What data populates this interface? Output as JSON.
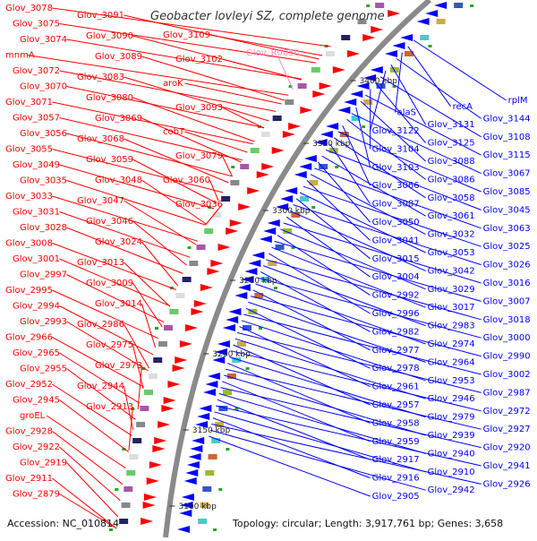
{
  "title": "Geobacter lovleyi SZ, complete genome",
  "footer": {
    "accession": "Accession: NC_010814",
    "summary": "Topology: circular; Length: 3,917,761 bp; Genes: 3,658"
  },
  "colors": {
    "forward_strand": "#ff0000",
    "reverse_strand": "#0000ff",
    "rna_feature": "#ff88cc",
    "backbone": "#8a8a8a"
  },
  "kbp_ticks": [
    "3400 kbp",
    "3350 kbp",
    "3300 kbp",
    "3250 kbp",
    "3200 kbp",
    "3150 kbp",
    "3100 kbp"
  ],
  "left_labels": [
    "Glov_3078",
    "Glov_3075",
    "Glov_3074",
    "mnmA",
    "Glov_3072",
    "Glov_3070",
    "Glov_3071",
    "Glov_3057",
    "Glov_3056",
    "Glov_3055",
    "Glov_3049",
    "Glov_3035",
    "Glov_3033",
    "Glov_3031",
    "Glov_3028",
    "Glov_3008",
    "Glov_3001",
    "Glov_2997",
    "Glov_2995",
    "Glov_2994",
    "Glov_2993",
    "Glov_2966",
    "Glov_2965",
    "Glov_2955",
    "Glov_2952",
    "Glov_2945",
    "groEL",
    "Glov_2928",
    "Glov_2922",
    "Glov_2919",
    "Glov_2911",
    "Glov_2879"
  ],
  "inner_left_labels": [
    "Glov_3091",
    "Glov_3090",
    "Glov_3089",
    "Glov_3083",
    "Glov_3080",
    "Glov_3069",
    "Glov_3068",
    "Glov_3059",
    "Glov_3048",
    "Glov_3047",
    "Glov_3046",
    "Glov_3024",
    "Glov_3013",
    "Glov_3009",
    "Glov_3014",
    "Glov_2986",
    "Glov_2975",
    "Glov_2973",
    "Glov_2944",
    "Glov_2913"
  ],
  "mid_labels": [
    "Glov_3109",
    "Glov_3102",
    "aroK",
    "Glov_3093",
    "cobT",
    "Glov_3079",
    "Glov_3060",
    "Glov_3036"
  ],
  "rna_label": "Glov_R0050",
  "right_labels": [
    "rplM",
    "recA",
    "alaS",
    "Glov_3144",
    "Glov_3131",
    "Glov_3122",
    "Glov_3108",
    "Glov_3125",
    "Glov_3104",
    "Glov_3115",
    "Glov_3088",
    "Glov_3103",
    "Glov_3067",
    "Glov_3086",
    "Glov_3066",
    "Glov_3085",
    "Glov_3058",
    "Glov_3087",
    "Glov_3045",
    "Glov_3061",
    "Glov_3050",
    "Glov_3063",
    "Glov_3032",
    "Glov_3041",
    "Glov_3025",
    "Glov_3053",
    "Glov_3015",
    "Glov_3026",
    "Glov_3042",
    "Glov_3004",
    "Glov_3016",
    "Glov_3029",
    "Glov_2992",
    "Glov_3007",
    "Glov_3017",
    "Glov_2996",
    "Glov_3018",
    "Glov_2983",
    "Glov_2982",
    "Glov_3000",
    "Glov_2974",
    "Glov_2977",
    "Glov_2990",
    "Glov_2964",
    "Glov_2978",
    "Glov_3002",
    "Glov_2953",
    "Glov_2961",
    "Glov_2987",
    "Glov_2946",
    "Glov_2957",
    "Glov_2972",
    "Glov_2979",
    "Glov_2958",
    "Glov_2927",
    "Glov_2939",
    "Glov_2959",
    "Glov_2920",
    "Glov_2940",
    "Glov_2917",
    "Glov_2941",
    "Glov_2910",
    "Glov_2916",
    "Glov_2926",
    "Glov_2942",
    "Glov_2905"
  ]
}
